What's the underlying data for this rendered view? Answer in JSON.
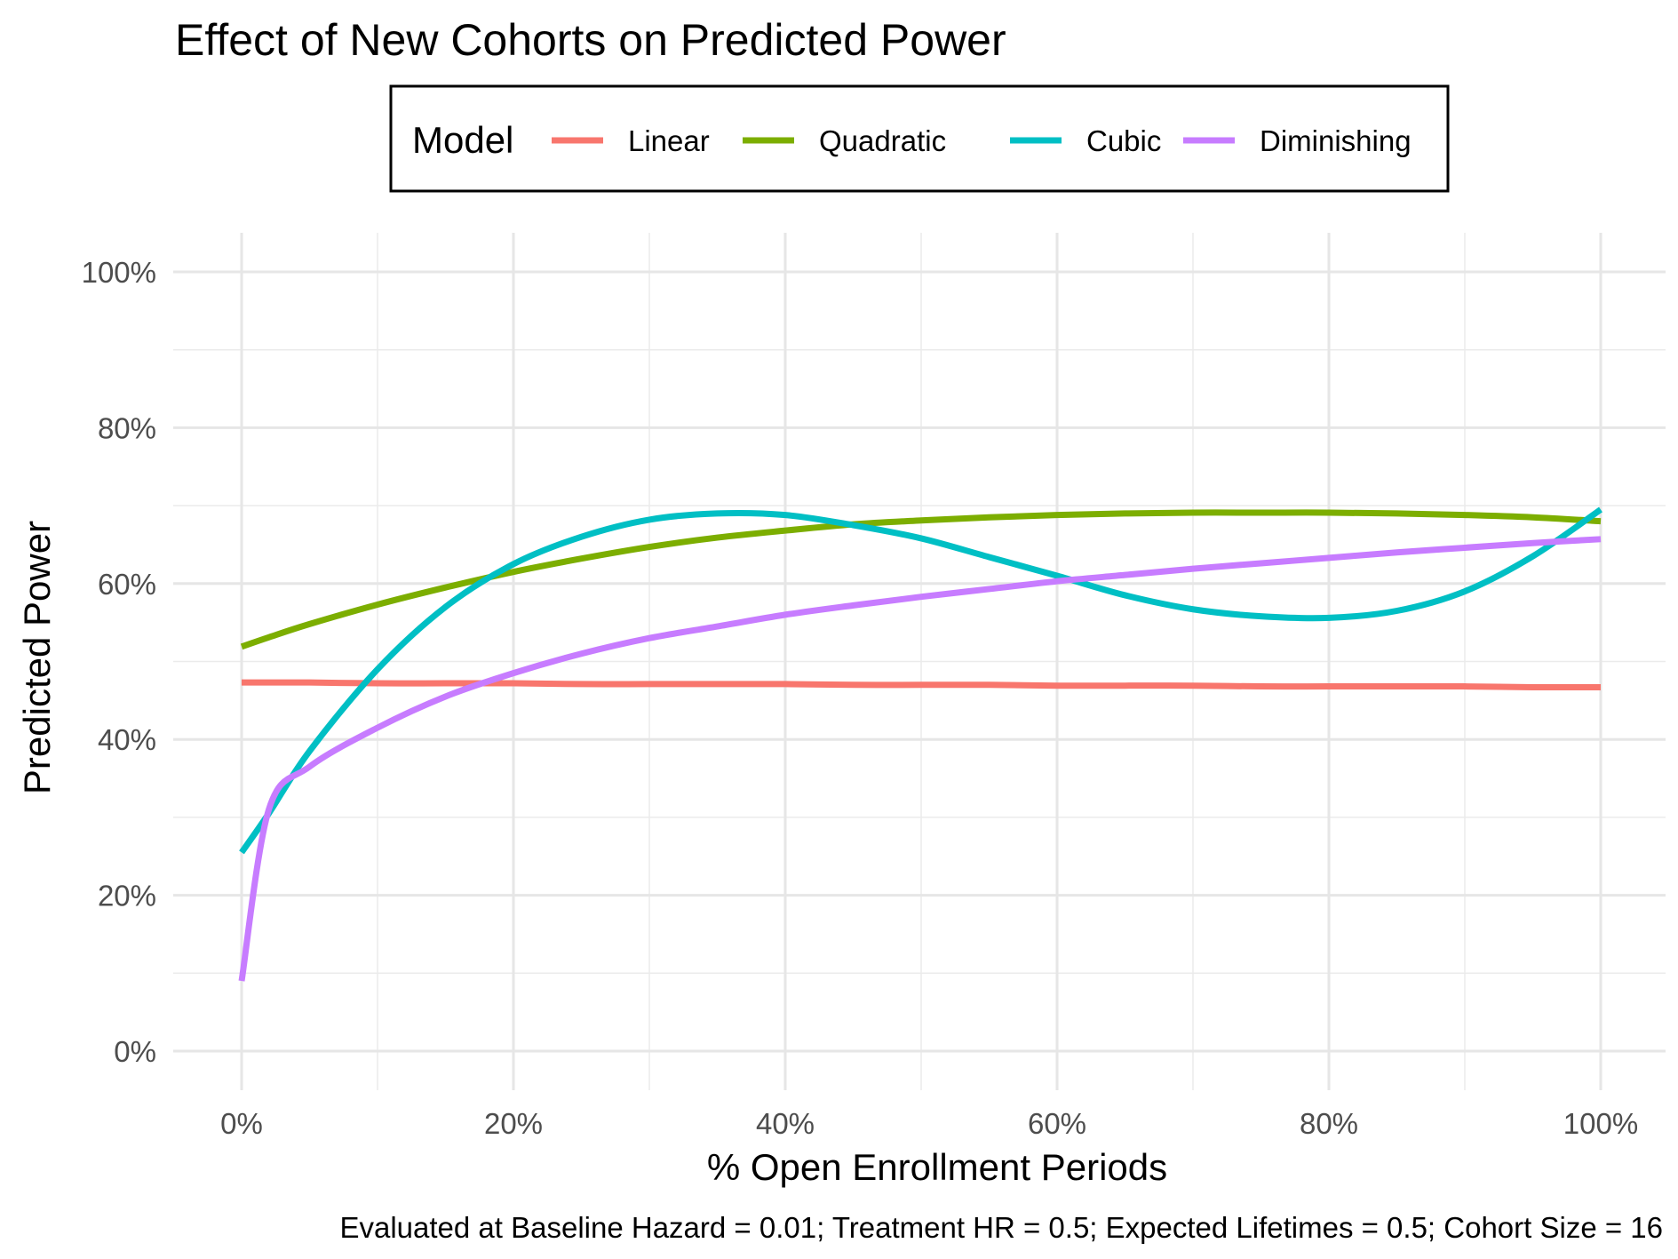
{
  "chart_data": {
    "type": "line",
    "title": "Effect of New Cohorts on Predicted Power",
    "xlabel": "% Open Enrollment Periods",
    "ylabel": "Predicted Power",
    "caption": "Evaluated at Baseline Hazard = 0.01; Treatment HR = 0.5; Expected Lifetimes = 0.5; Cohort Size = 16",
    "xlim": [
      0,
      100
    ],
    "ylim": [
      0,
      100
    ],
    "x_ticks": [
      0,
      20,
      40,
      60,
      80,
      100
    ],
    "y_ticks": [
      0,
      20,
      40,
      60,
      80,
      100
    ],
    "x_tick_labels": [
      "0%",
      "20%",
      "40%",
      "60%",
      "80%",
      "100%"
    ],
    "y_tick_labels": [
      "0%",
      "20%",
      "40%",
      "60%",
      "80%",
      "100%"
    ],
    "grid": true,
    "legend": {
      "title": "Model",
      "position": "top",
      "entries": [
        "Linear",
        "Quadratic",
        "Cubic",
        "Diminishing"
      ]
    },
    "x": [
      0,
      2,
      5,
      10,
      15,
      20,
      25,
      30,
      35,
      40,
      45,
      50,
      55,
      60,
      65,
      70,
      75,
      80,
      85,
      90,
      95,
      100
    ],
    "series": [
      {
        "name": "Linear",
        "color": "#F8766D",
        "values": [
          47.3,
          47.3,
          47.3,
          47.2,
          47.2,
          47.2,
          47.1,
          47.1,
          47.1,
          47.1,
          47.0,
          47.0,
          47.0,
          46.9,
          46.9,
          46.9,
          46.8,
          46.8,
          46.8,
          46.8,
          46.7,
          46.7
        ]
      },
      {
        "name": "Quadratic",
        "color": "#7CAE00",
        "values": [
          51.9,
          53.1,
          54.8,
          57.3,
          59.5,
          61.5,
          63.2,
          64.7,
          65.9,
          66.8,
          67.6,
          68.1,
          68.5,
          68.8,
          69.0,
          69.1,
          69.1,
          69.1,
          69.0,
          68.8,
          68.5,
          68.0
        ]
      },
      {
        "name": "Cubic",
        "color": "#00BFC4",
        "values": [
          25.5,
          30.5,
          38.5,
          49.0,
          57.0,
          62.5,
          66.0,
          68.2,
          69.0,
          68.8,
          67.5,
          65.8,
          63.4,
          61.0,
          58.5,
          56.7,
          55.8,
          55.6,
          56.5,
          59.0,
          63.5,
          69.5
        ]
      },
      {
        "name": "Diminishing",
        "color": "#C77CFF",
        "values": [
          9.0,
          31.0,
          36.5,
          41.5,
          45.5,
          48.5,
          51.0,
          53.0,
          54.5,
          56.0,
          57.2,
          58.3,
          59.3,
          60.3,
          61.1,
          61.9,
          62.6,
          63.3,
          64.0,
          64.6,
          65.2,
          65.7
        ]
      }
    ]
  }
}
